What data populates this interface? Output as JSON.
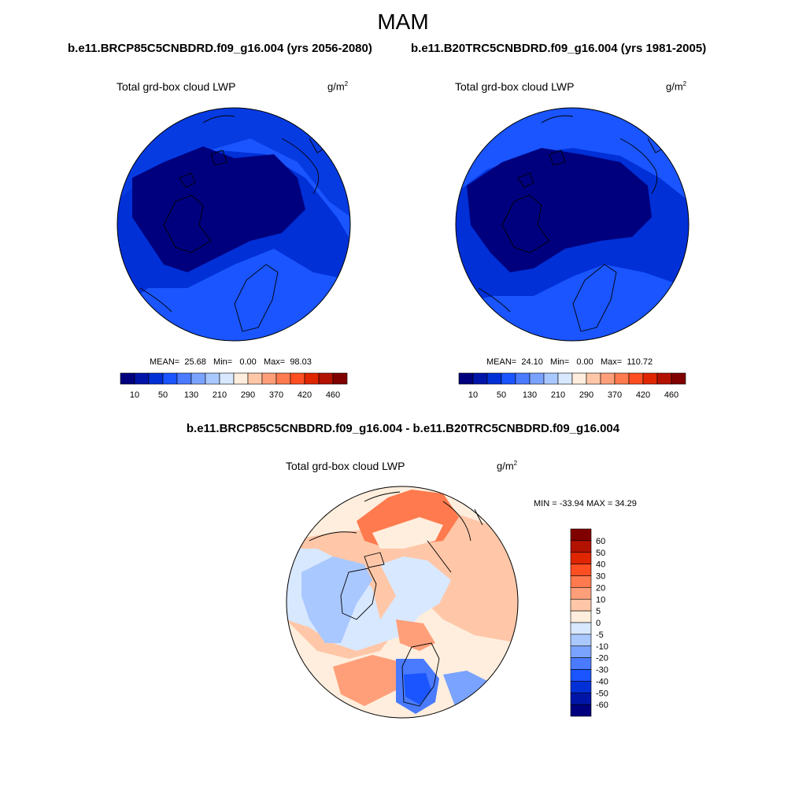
{
  "figure": {
    "season": "MAM",
    "title_left": "b.e11.BRCP85C5CNBDRD.f09_g16.004 (yrs 2056-2080)",
    "title_right": "b.e11.B20TRC5CNBDRD.f09_g16.004 (yrs 1981-2005)",
    "diff_title": "b.e11.BRCP85C5CNBDRD.f09_g16.004 - b.e11.B20TRC5CNBDRD.f09_g16.004"
  },
  "panels": {
    "left": {
      "variable": "Total grd-box cloud LWP",
      "unit_base": "g/m",
      "unit_exp": "2",
      "mean_label": "MEAN=",
      "mean": "25.68",
      "min_label": "Min=",
      "min": "0.00",
      "max_label": "Max=",
      "max": "98.03"
    },
    "right": {
      "variable": "Total grd-box cloud LWP",
      "unit_base": "g/m",
      "unit_exp": "2",
      "mean_label": "MEAN=",
      "mean": "24.10",
      "min_label": "Min=",
      "min": "0.00",
      "max_label": "Max=",
      "max": "110.72"
    },
    "diff": {
      "variable": "Total grd-box cloud LWP",
      "unit_base": "g/m",
      "unit_exp": "2",
      "minmax": "MIN = -33.94 MAX =  34.29"
    }
  },
  "colorbar_top": {
    "labels": [
      "10",
      "50",
      "130",
      "210",
      "290",
      "370",
      "420",
      "460"
    ],
    "colors": [
      "#00007e",
      "#0015a8",
      "#0030d6",
      "#1a55ff",
      "#4a7bff",
      "#7aa3ff",
      "#a9c8ff",
      "#d8e8ff",
      "#ffeedd",
      "#ffc7a8",
      "#ff9f7a",
      "#ff7a4e",
      "#ff4e22",
      "#e02600",
      "#b31200",
      "#800000"
    ]
  },
  "colorbar_diff": {
    "labels": [
      "60",
      "50",
      "40",
      "30",
      "20",
      "10",
      "5",
      "0",
      "-5",
      "-10",
      "-20",
      "-30",
      "-40",
      "-50",
      "-60"
    ],
    "colors": [
      "#800000",
      "#b31200",
      "#e02600",
      "#ff4e22",
      "#ff7a4e",
      "#ff9f7a",
      "#ffc7a8",
      "#ffeedd",
      "#d8e8ff",
      "#a9c8ff",
      "#7aa3ff",
      "#4a7bff",
      "#1a55ff",
      "#0030d6",
      "#0015a8",
      "#00007e"
    ]
  }
}
